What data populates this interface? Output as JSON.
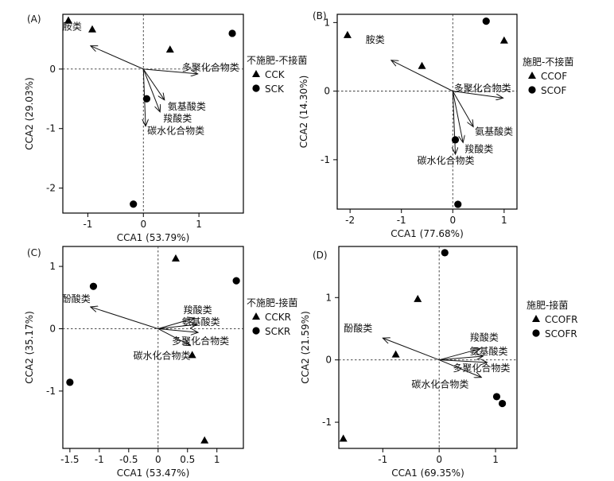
{
  "chart_data": [
    {
      "type": "scatter",
      "panel_label": "(A)",
      "xlabel": "CCA1 (53.79%)",
      "ylabel": "CCA2 (29.03%)",
      "xlim": [
        -1.45,
        1.8
      ],
      "ylim": [
        -2.42,
        0.92
      ],
      "xticks": [
        -1,
        0,
        1
      ],
      "yticks": [
        -2,
        -1,
        0
      ],
      "legend_title": "不施肥-不接菌",
      "series": [
        {
          "name": "CCK",
          "marker": "triangle",
          "points": [
            [
              -1.35,
              0.82
            ],
            [
              -0.92,
              0.67
            ],
            [
              0.48,
              0.33
            ]
          ]
        },
        {
          "name": "SCK",
          "marker": "circle",
          "points": [
            [
              1.6,
              0.6
            ],
            [
              0.06,
              -0.5
            ],
            [
              -0.18,
              -2.27
            ]
          ]
        }
      ],
      "vectors": [
        {
          "label": "胺类",
          "x": -0.95,
          "y": 0.39
        },
        {
          "label": "多聚化合物类",
          "x": 0.98,
          "y": -0.08
        },
        {
          "label": "氨基酸类",
          "x": 0.38,
          "y": -0.52
        },
        {
          "label": "羧酸类",
          "x": 0.3,
          "y": -0.72
        },
        {
          "label": "碳水化合物类",
          "x": 0.04,
          "y": -0.96
        }
      ]
    },
    {
      "type": "scatter",
      "panel_label": "(B)",
      "xlabel": "CCA1 (77.68%)",
      "ylabel": "CCA2 (14.30%)",
      "xlim": [
        -2.25,
        1.25
      ],
      "ylim": [
        -1.72,
        1.12
      ],
      "xticks": [
        -2,
        -1,
        0,
        1
      ],
      "yticks": [
        -1,
        0,
        1
      ],
      "legend_title": "施肥-不接菌",
      "series": [
        {
          "name": "CCOF",
          "marker": "triangle",
          "points": [
            [
              -2.05,
              0.82
            ],
            [
              -0.6,
              0.37
            ],
            [
              1.0,
              0.74
            ]
          ]
        },
        {
          "name": "SCOF",
          "marker": "circle",
          "points": [
            [
              0.65,
              1.02
            ],
            [
              0.05,
              -0.71
            ],
            [
              0.1,
              -1.65
            ]
          ]
        }
      ],
      "vectors": [
        {
          "label": "胺类",
          "x": -1.2,
          "y": 0.45
        },
        {
          "label": "多聚化合物类",
          "x": 0.98,
          "y": -0.1
        },
        {
          "label": "氨基酸类",
          "x": 0.4,
          "y": -0.52
        },
        {
          "label": "羧酸类",
          "x": 0.2,
          "y": -0.75
        },
        {
          "label": "碳水化合物类",
          "x": 0.05,
          "y": -0.92
        }
      ]
    },
    {
      "type": "scatter",
      "panel_label": "(C)",
      "xlabel": "CCA1 (53.47%)",
      "ylabel": "CCA2 (35.17%)",
      "xlim": [
        -1.62,
        1.45
      ],
      "ylim": [
        -1.92,
        1.32
      ],
      "xticks": [
        -1.5,
        -1,
        -0.5,
        0,
        0.5,
        1
      ],
      "yticks": [
        -1,
        0,
        1
      ],
      "legend_title": "不施肥-接菌",
      "series": [
        {
          "name": "CCKR",
          "marker": "triangle",
          "points": [
            [
              0.3,
              1.13
            ],
            [
              0.58,
              -0.42
            ],
            [
              0.79,
              -1.79
            ]
          ]
        },
        {
          "name": "SCKR",
          "marker": "circle",
          "points": [
            [
              -1.1,
              0.68
            ],
            [
              1.33,
              0.77
            ],
            [
              -1.5,
              -0.86
            ]
          ]
        }
      ],
      "vectors": [
        {
          "label": "酚酸类",
          "x": -1.15,
          "y": 0.35
        },
        {
          "label": "羧酸类",
          "x": 0.62,
          "y": 0.17
        },
        {
          "label": "氨基酸类",
          "x": 0.66,
          "y": 0.07
        },
        {
          "label": "多聚化合物类",
          "x": 0.68,
          "y": -0.06
        },
        {
          "label": "碳水化合物类",
          "x": 0.55,
          "y": -0.27
        }
      ]
    },
    {
      "type": "scatter",
      "panel_label": "(D)",
      "xlabel": "CCA1 (69.35%)",
      "ylabel": "CCA2 (21.59%)",
      "xlim": [
        -1.78,
        1.38
      ],
      "ylim": [
        -1.42,
        1.82
      ],
      "xticks": [
        -1,
        0,
        1
      ],
      "yticks": [
        -1,
        0,
        1
      ],
      "legend_title": "施肥-接菌",
      "series": [
        {
          "name": "CCOFR",
          "marker": "triangle",
          "points": [
            [
              -0.38,
              0.98
            ],
            [
              -0.77,
              0.09
            ],
            [
              -1.7,
              -1.26
            ]
          ]
        },
        {
          "name": "SCOFR",
          "marker": "circle",
          "points": [
            [
              0.1,
              1.72
            ],
            [
              1.02,
              -0.59
            ],
            [
              1.12,
              -0.7
            ]
          ]
        }
      ],
      "vectors": [
        {
          "label": "酚酸类",
          "x": -1.0,
          "y": 0.35
        },
        {
          "label": "羧酸类",
          "x": 0.73,
          "y": 0.18
        },
        {
          "label": "氨基酸类",
          "x": 0.78,
          "y": 0.06
        },
        {
          "label": "多聚化合物类",
          "x": 0.85,
          "y": -0.04
        },
        {
          "label": "碳水化合物类",
          "x": 0.75,
          "y": -0.28
        }
      ]
    }
  ]
}
